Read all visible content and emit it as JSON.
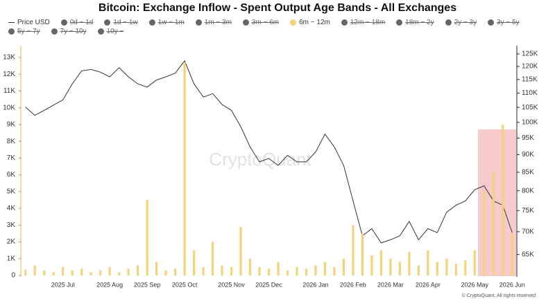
{
  "chart_data": {
    "type": "bar-line",
    "title": "Bitcoin: Exchange Inflow - Spent Output Age Bands - All Exchanges",
    "watermark": "CryptoQuant",
    "footer": "© CryptoQuant. All rights reserved",
    "categories": [
      null,
      null,
      null,
      null,
      "2025 Jul",
      null,
      null,
      null,
      null,
      "2025 Aug",
      null,
      null,
      null,
      "2025 Sep",
      null,
      null,
      null,
      "2025 Oct",
      null,
      null,
      null,
      null,
      "2025 Nov",
      null,
      null,
      null,
      "2025 Dec",
      null,
      null,
      null,
      null,
      "2026 Jan",
      null,
      null,
      null,
      "2026 Feb",
      null,
      null,
      null,
      "2026 Mar",
      null,
      null,
      null,
      "2026 Apr",
      null,
      null,
      null,
      null,
      "2026 May",
      null,
      null,
      null,
      "2026 Jun"
    ],
    "series": [
      {
        "name": "Price USD",
        "color": "#333333",
        "axis": "y2",
        "kind": "line",
        "values": [
          105100,
          102300,
          104000,
          105800,
          107600,
          113400,
          118300,
          118800,
          117800,
          116000,
          119500,
          116000,
          113400,
          112200,
          114800,
          116000,
          117400,
          122200,
          113400,
          108600,
          109800,
          106000,
          104000,
          98600,
          92300,
          87900,
          88900,
          86900,
          89800,
          87900,
          87900,
          90800,
          96200,
          92300,
          86900,
          77400,
          69100,
          70700,
          67500,
          68200,
          69100,
          72400,
          68200,
          70700,
          69800,
          74600,
          76300,
          77400,
          80300,
          81300,
          77400,
          76300,
          69800
        ]
      },
      {
        "name": "0d ~ 1d",
        "color": "#666666",
        "visible": false
      },
      {
        "name": "1d ~ 1w",
        "color": "#666666",
        "visible": false
      },
      {
        "name": "1w ~ 1m",
        "color": "#666666",
        "visible": false
      },
      {
        "name": "1m ~ 3m",
        "color": "#666666",
        "visible": false
      },
      {
        "name": "3m ~ 6m",
        "color": "#666666",
        "visible": false
      },
      {
        "name": "6m ~ 12m",
        "color": "#f3d27a",
        "axis": "y",
        "kind": "bar",
        "values": [
          350,
          600,
          300,
          200,
          500,
          300,
          400,
          200,
          300,
          500,
          200,
          400,
          600,
          4500,
          800,
          300,
          400,
          12700,
          1500,
          500,
          2000,
          600,
          500,
          2900,
          1000,
          500,
          400,
          800,
          300,
          500,
          400,
          600,
          800,
          500,
          1000,
          3000,
          2500,
          1200,
          1500,
          1000,
          800,
          1400,
          600,
          1500,
          800,
          1000,
          700,
          900,
          1500,
          5000,
          6200,
          9000,
          2500
        ]
      },
      {
        "name": "12m ~ 18m",
        "color": "#666666",
        "visible": false
      },
      {
        "name": "18m ~ 2y",
        "color": "#666666",
        "visible": false
      },
      {
        "name": "2y ~ 3y",
        "color": "#666666",
        "visible": false
      },
      {
        "name": "3y ~ 5y",
        "color": "#666666",
        "visible": false
      },
      {
        "name": "5y ~ 7y",
        "color": "#666666",
        "visible": false
      },
      {
        "name": "7y ~ 10y",
        "color": "#666666",
        "visible": false
      },
      {
        "name": "10y ~",
        "color": "#666666",
        "visible": false
      }
    ],
    "ylim": [
      0,
      13700
    ],
    "yticks": [
      0,
      {
        "value": 1000,
        "label": "1K"
      },
      {
        "value": 2000,
        "label": "2K"
      },
      {
        "value": 3000,
        "label": "3K"
      },
      {
        "value": 4000,
        "label": "4K"
      },
      {
        "value": 5000,
        "label": "5K"
      },
      {
        "value": 6000,
        "label": "6K"
      },
      {
        "value": 7000,
        "label": "7K"
      },
      {
        "value": 8000,
        "label": "8K"
      },
      {
        "value": 9000,
        "label": "9K"
      },
      {
        "value": 10000,
        "label": "10K"
      },
      {
        "value": 11000,
        "label": "11K"
      },
      {
        "value": 12000,
        "label": "12K"
      },
      {
        "value": 13000,
        "label": "13K"
      }
    ],
    "y2lim": [
      60700,
      128400
    ],
    "y2_log_scale": true,
    "y2ticks": [
      {
        "value": 65000,
        "label": "65K"
      },
      {
        "value": 70000,
        "label": "70K"
      },
      {
        "value": 75000,
        "label": "75K"
      },
      {
        "value": 80000,
        "label": "80K"
      },
      {
        "value": 85000,
        "label": "85K"
      },
      {
        "value": 90000,
        "label": "90K"
      },
      {
        "value": 95000,
        "label": "95K"
      },
      {
        "value": 100000,
        "label": "100K"
      },
      {
        "value": 105000,
        "label": "105K"
      },
      {
        "value": 110000,
        "label": "110K"
      },
      {
        "value": 115000,
        "label": "115K"
      },
      {
        "value": 120000,
        "label": "120K"
      },
      {
        "value": 125000,
        "label": "125K"
      }
    ],
    "grid": false
  }
}
